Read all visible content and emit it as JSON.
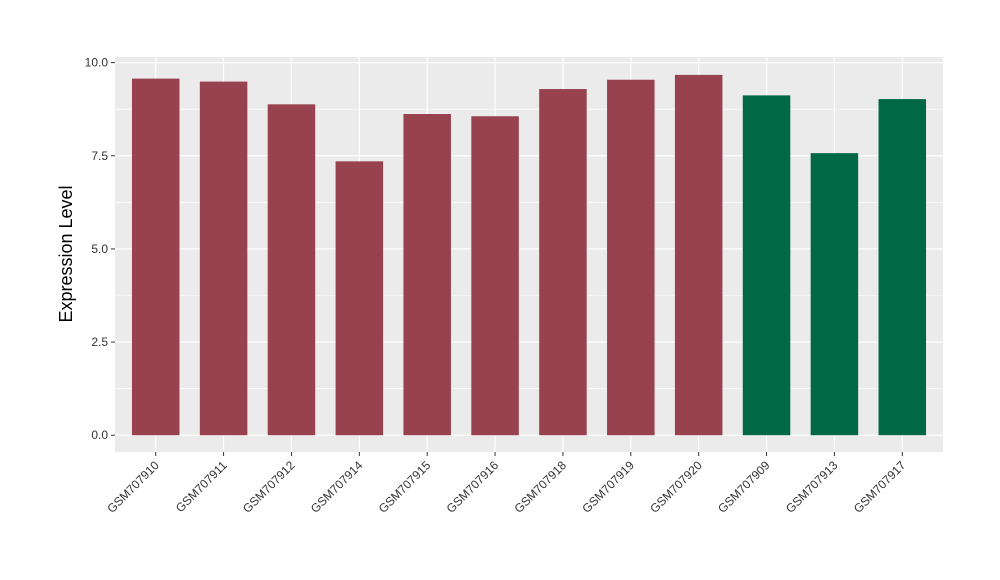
{
  "chart_data": {
    "type": "bar",
    "ylabel": "Expression Level",
    "xlabel": "",
    "ylim": [
      -0.45,
      10.15
    ],
    "yticks": [
      0.0,
      2.5,
      5.0,
      7.5,
      10.0
    ],
    "ytick_labels": [
      "0.0",
      "2.5",
      "5.0",
      "7.5",
      "10.0"
    ],
    "grid": true,
    "legend": "none",
    "categories": [
      "GSM707910",
      "GSM707911",
      "GSM707912",
      "GSM707914",
      "GSM707915",
      "GSM707916",
      "GSM707918",
      "GSM707919",
      "GSM707920",
      "GSM707909",
      "GSM707913",
      "GSM707917"
    ],
    "values": [
      9.57,
      9.49,
      8.88,
      7.35,
      8.62,
      8.56,
      9.29,
      9.54,
      9.67,
      9.12,
      7.57,
      9.02
    ],
    "groups": [
      "a",
      "a",
      "a",
      "a",
      "a",
      "a",
      "a",
      "a",
      "a",
      "b",
      "b",
      "b"
    ],
    "group_colors": {
      "a": "#98414f",
      "b": "#006845"
    },
    "panel_color": "#ebebeb",
    "grid_color": "#ffffff"
  }
}
